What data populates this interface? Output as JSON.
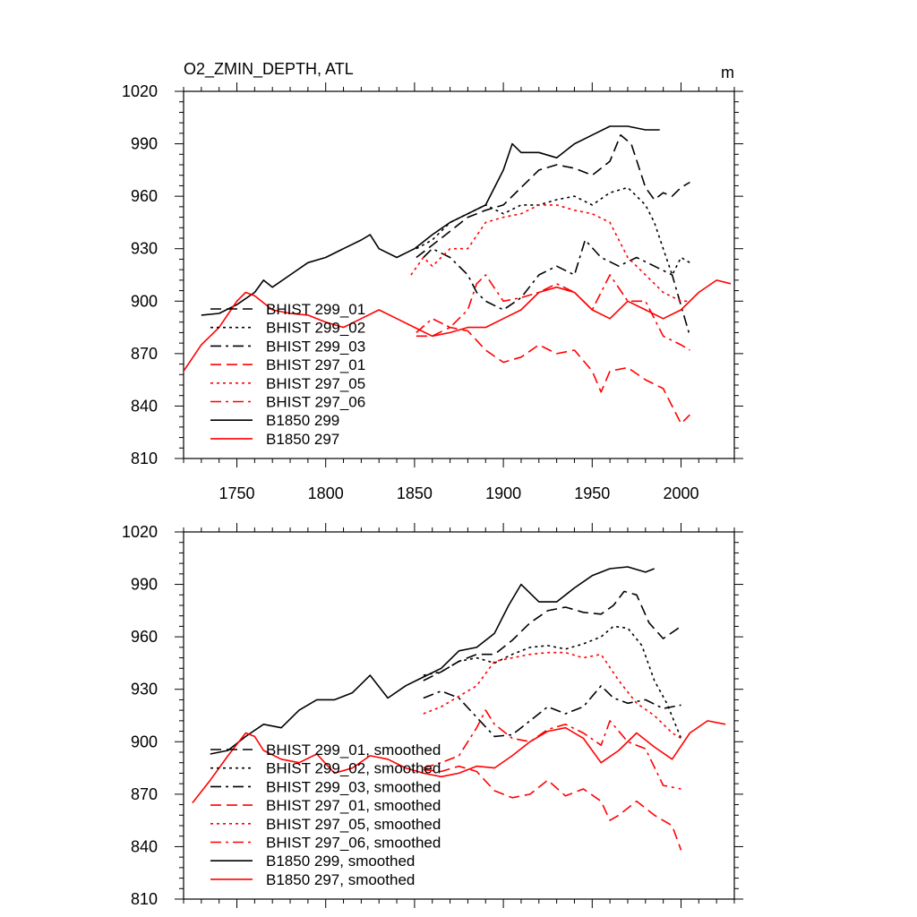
{
  "chart_data": [
    {
      "type": "line",
      "title": "O2_ZMIN_DEPTH, ATL",
      "units": "m",
      "xlim": [
        1720,
        2030
      ],
      "ylim": [
        810,
        1020
      ],
      "xticks": [
        1750,
        1800,
        1850,
        1900,
        1950,
        2000
      ],
      "xtick_labels": [
        "1750",
        "1800",
        "1850",
        "1900",
        "1950",
        "2000"
      ],
      "yticks": [
        810,
        840,
        870,
        900,
        930,
        960,
        990,
        1020
      ],
      "ytick_labels": [
        "810",
        "840",
        "870",
        "900",
        "930",
        "960",
        "990",
        "1020"
      ],
      "legend": "bottom-left",
      "series": [
        {
          "name": "BHIST 299_01",
          "color": "#000000",
          "dash": "dashed",
          "x": [
            1851,
            1860,
            1870,
            1880,
            1890,
            1900,
            1910,
            1920,
            1930,
            1940,
            1950,
            1960,
            1966,
            1972,
            1980,
            1985,
            1990,
            1995,
            2000,
            2005
          ],
          "y": [
            925,
            932,
            940,
            948,
            952,
            955,
            965,
            975,
            978,
            976,
            972,
            980,
            995,
            990,
            965,
            958,
            962,
            960,
            965,
            968
          ]
        },
        {
          "name": "BHIST 299_02",
          "color": "#000000",
          "dash": "dotted",
          "x": [
            1851,
            1860,
            1870,
            1880,
            1890,
            1900,
            1910,
            1920,
            1930,
            1940,
            1950,
            1960,
            1970,
            1980,
            1985,
            1990,
            1995,
            2000,
            2005
          ],
          "y": [
            930,
            935,
            945,
            950,
            955,
            950,
            955,
            955,
            958,
            960,
            955,
            962,
            965,
            955,
            945,
            930,
            915,
            925,
            922
          ]
        },
        {
          "name": "BHIST 299_03",
          "color": "#000000",
          "dash": "dashdot",
          "x": [
            1855,
            1860,
            1870,
            1880,
            1885,
            1890,
            1900,
            1910,
            1920,
            1930,
            1940,
            1946,
            1955,
            1965,
            1975,
            1985,
            1995,
            2005
          ],
          "y": [
            925,
            930,
            925,
            915,
            905,
            900,
            895,
            902,
            915,
            920,
            915,
            935,
            925,
            920,
            925,
            920,
            915,
            880
          ]
        },
        {
          "name": "BHIST 297_01",
          "color": "#ff0000",
          "dash": "dashed",
          "x": [
            1851,
            1860,
            1870,
            1880,
            1890,
            1900,
            1910,
            1920,
            1930,
            1940,
            1950,
            1955,
            1960,
            1970,
            1980,
            1990,
            2000,
            2005
          ],
          "y": [
            880,
            880,
            885,
            883,
            872,
            865,
            868,
            875,
            870,
            872,
            860,
            848,
            860,
            862,
            855,
            850,
            830,
            835
          ]
        },
        {
          "name": "BHIST 297_05",
          "color": "#ff0000",
          "dash": "dotted",
          "x": [
            1848,
            1855,
            1860,
            1870,
            1880,
            1890,
            1900,
            1910,
            1920,
            1930,
            1940,
            1950,
            1960,
            1970,
            1980,
            1990,
            2000,
            2005
          ],
          "y": [
            915,
            925,
            920,
            930,
            930,
            945,
            948,
            950,
            955,
            955,
            952,
            950,
            945,
            925,
            915,
            905,
            900,
            900
          ]
        },
        {
          "name": "BHIST 297_06",
          "color": "#ff0000",
          "dash": "dashdot",
          "x": [
            1851,
            1860,
            1870,
            1880,
            1885,
            1890,
            1900,
            1910,
            1920,
            1930,
            1940,
            1950,
            1955,
            1960,
            1970,
            1980,
            1985,
            1990,
            2000,
            2005
          ],
          "y": [
            882,
            890,
            885,
            895,
            910,
            915,
            900,
            902,
            905,
            910,
            905,
            895,
            905,
            915,
            900,
            900,
            890,
            880,
            875,
            872
          ]
        },
        {
          "name": "B1850 299",
          "color": "#000000",
          "dash": "solid",
          "x": [
            1730,
            1740,
            1750,
            1760,
            1765,
            1770,
            1780,
            1790,
            1800,
            1810,
            1820,
            1825,
            1830,
            1840,
            1850,
            1860,
            1870,
            1880,
            1890,
            1900,
            1905,
            1910,
            1920,
            1930,
            1940,
            1950,
            1960,
            1970,
            1980,
            1988
          ],
          "y": [
            892,
            893,
            898,
            905,
            912,
            908,
            915,
            922,
            925,
            930,
            935,
            938,
            930,
            925,
            930,
            938,
            945,
            950,
            955,
            975,
            990,
            985,
            985,
            982,
            990,
            995,
            1000,
            1000,
            998,
            998
          ]
        },
        {
          "name": "B1850 297",
          "color": "#ff0000",
          "dash": "solid",
          "x": [
            1720,
            1730,
            1740,
            1750,
            1755,
            1760,
            1770,
            1780,
            1790,
            1800,
            1810,
            1820,
            1830,
            1840,
            1850,
            1860,
            1870,
            1880,
            1890,
            1900,
            1910,
            1920,
            1930,
            1940,
            1950,
            1960,
            1970,
            1980,
            1990,
            2000,
            2010,
            2020,
            2028
          ],
          "y": [
            860,
            875,
            885,
            900,
            905,
            903,
            895,
            893,
            892,
            888,
            885,
            890,
            895,
            890,
            885,
            880,
            882,
            885,
            885,
            890,
            895,
            905,
            908,
            905,
            895,
            890,
            900,
            895,
            890,
            895,
            905,
            912,
            910
          ]
        }
      ]
    },
    {
      "type": "line",
      "title": "",
      "xlim": [
        1720,
        2030
      ],
      "ylim": [
        810,
        1020
      ],
      "xticks": [
        1750,
        1800,
        1850,
        1900,
        1950,
        2000
      ],
      "xtick_labels": [],
      "yticks": [
        810,
        840,
        870,
        900,
        930,
        960,
        990,
        1020
      ],
      "ytick_labels": [
        "810",
        "840",
        "870",
        "900",
        "930",
        "960",
        "990",
        "1020"
      ],
      "legend": "bottom-left",
      "series": [
        {
          "name": "BHIST 299_01, smoothed",
          "color": "#000000",
          "dash": "dashed",
          "x": [
            1855,
            1865,
            1875,
            1885,
            1895,
            1905,
            1915,
            1925,
            1935,
            1945,
            1955,
            1962,
            1968,
            1975,
            1982,
            1990,
            2000
          ],
          "y": [
            935,
            940,
            946,
            950,
            950,
            958,
            968,
            975,
            977,
            974,
            973,
            978,
            986,
            984,
            968,
            959,
            966
          ]
        },
        {
          "name": "BHIST 299_02, smoothed",
          "color": "#000000",
          "dash": "dotted",
          "x": [
            1855,
            1865,
            1875,
            1885,
            1895,
            1905,
            1915,
            1925,
            1935,
            1945,
            1955,
            1962,
            1970,
            1978,
            1985,
            1992,
            2000
          ],
          "y": [
            938,
            940,
            946,
            948,
            945,
            950,
            954,
            955,
            953,
            956,
            960,
            966,
            965,
            955,
            935,
            922,
            902
          ]
        },
        {
          "name": "BHIST 299_03, smoothed",
          "color": "#000000",
          "dash": "dashdot",
          "x": [
            1855,
            1865,
            1875,
            1885,
            1895,
            1905,
            1915,
            1925,
            1935,
            1945,
            1955,
            1962,
            1970,
            1980,
            1990,
            2000
          ],
          "y": [
            925,
            929,
            925,
            914,
            903,
            904,
            912,
            920,
            916,
            920,
            932,
            925,
            922,
            924,
            919,
            921
          ]
        },
        {
          "name": "BHIST 297_01, smoothed",
          "color": "#ff0000",
          "dash": "dashed",
          "x": [
            1855,
            1865,
            1875,
            1885,
            1895,
            1905,
            1915,
            1925,
            1935,
            1945,
            1955,
            1960,
            1965,
            1975,
            1985,
            1995,
            2000
          ],
          "y": [
            884,
            883,
            886,
            883,
            872,
            868,
            870,
            878,
            869,
            873,
            866,
            855,
            858,
            866,
            858,
            852,
            838
          ]
        },
        {
          "name": "BHIST 297_05, smoothed",
          "color": "#ff0000",
          "dash": "dotted",
          "x": [
            1855,
            1865,
            1875,
            1885,
            1895,
            1905,
            1915,
            1925,
            1935,
            1945,
            1955,
            1965,
            1975,
            1985,
            1995,
            2000
          ],
          "y": [
            916,
            920,
            926,
            932,
            946,
            948,
            950,
            951,
            951,
            948,
            950,
            935,
            922,
            915,
            905,
            902
          ]
        },
        {
          "name": "BHIST 297_06, smoothed",
          "color": "#ff0000",
          "dash": "dashdot",
          "x": [
            1855,
            1865,
            1875,
            1885,
            1890,
            1895,
            1905,
            1915,
            1925,
            1935,
            1945,
            1955,
            1960,
            1970,
            1980,
            1990,
            2000
          ],
          "y": [
            885,
            888,
            892,
            908,
            918,
            910,
            902,
            900,
            907,
            910,
            905,
            898,
            912,
            900,
            896,
            875,
            873
          ]
        },
        {
          "name": "B1850 299, smoothed",
          "color": "#000000",
          "dash": "solid",
          "x": [
            1735,
            1745,
            1755,
            1765,
            1775,
            1785,
            1795,
            1805,
            1815,
            1825,
            1835,
            1845,
            1855,
            1865,
            1875,
            1885,
            1895,
            1903,
            1910,
            1920,
            1930,
            1940,
            1950,
            1960,
            1970,
            1980,
            1985
          ],
          "y": [
            893,
            895,
            903,
            910,
            908,
            918,
            924,
            924,
            928,
            938,
            925,
            932,
            937,
            942,
            952,
            954,
            962,
            978,
            990,
            980,
            980,
            988,
            995,
            999,
            1000,
            997,
            999
          ]
        },
        {
          "name": "B1850 297, smoothed",
          "color": "#ff0000",
          "dash": "solid",
          "x": [
            1725,
            1735,
            1745,
            1755,
            1760,
            1765,
            1775,
            1785,
            1795,
            1805,
            1815,
            1825,
            1835,
            1845,
            1855,
            1865,
            1875,
            1885,
            1895,
            1905,
            1915,
            1925,
            1935,
            1945,
            1955,
            1965,
            1975,
            1985,
            1995,
            2005,
            2015,
            2025
          ],
          "y": [
            865,
            878,
            892,
            905,
            903,
            895,
            890,
            888,
            893,
            882,
            885,
            892,
            890,
            885,
            882,
            880,
            882,
            886,
            885,
            892,
            900,
            906,
            908,
            902,
            888,
            895,
            905,
            897,
            890,
            905,
            912,
            910
          ]
        }
      ]
    }
  ]
}
